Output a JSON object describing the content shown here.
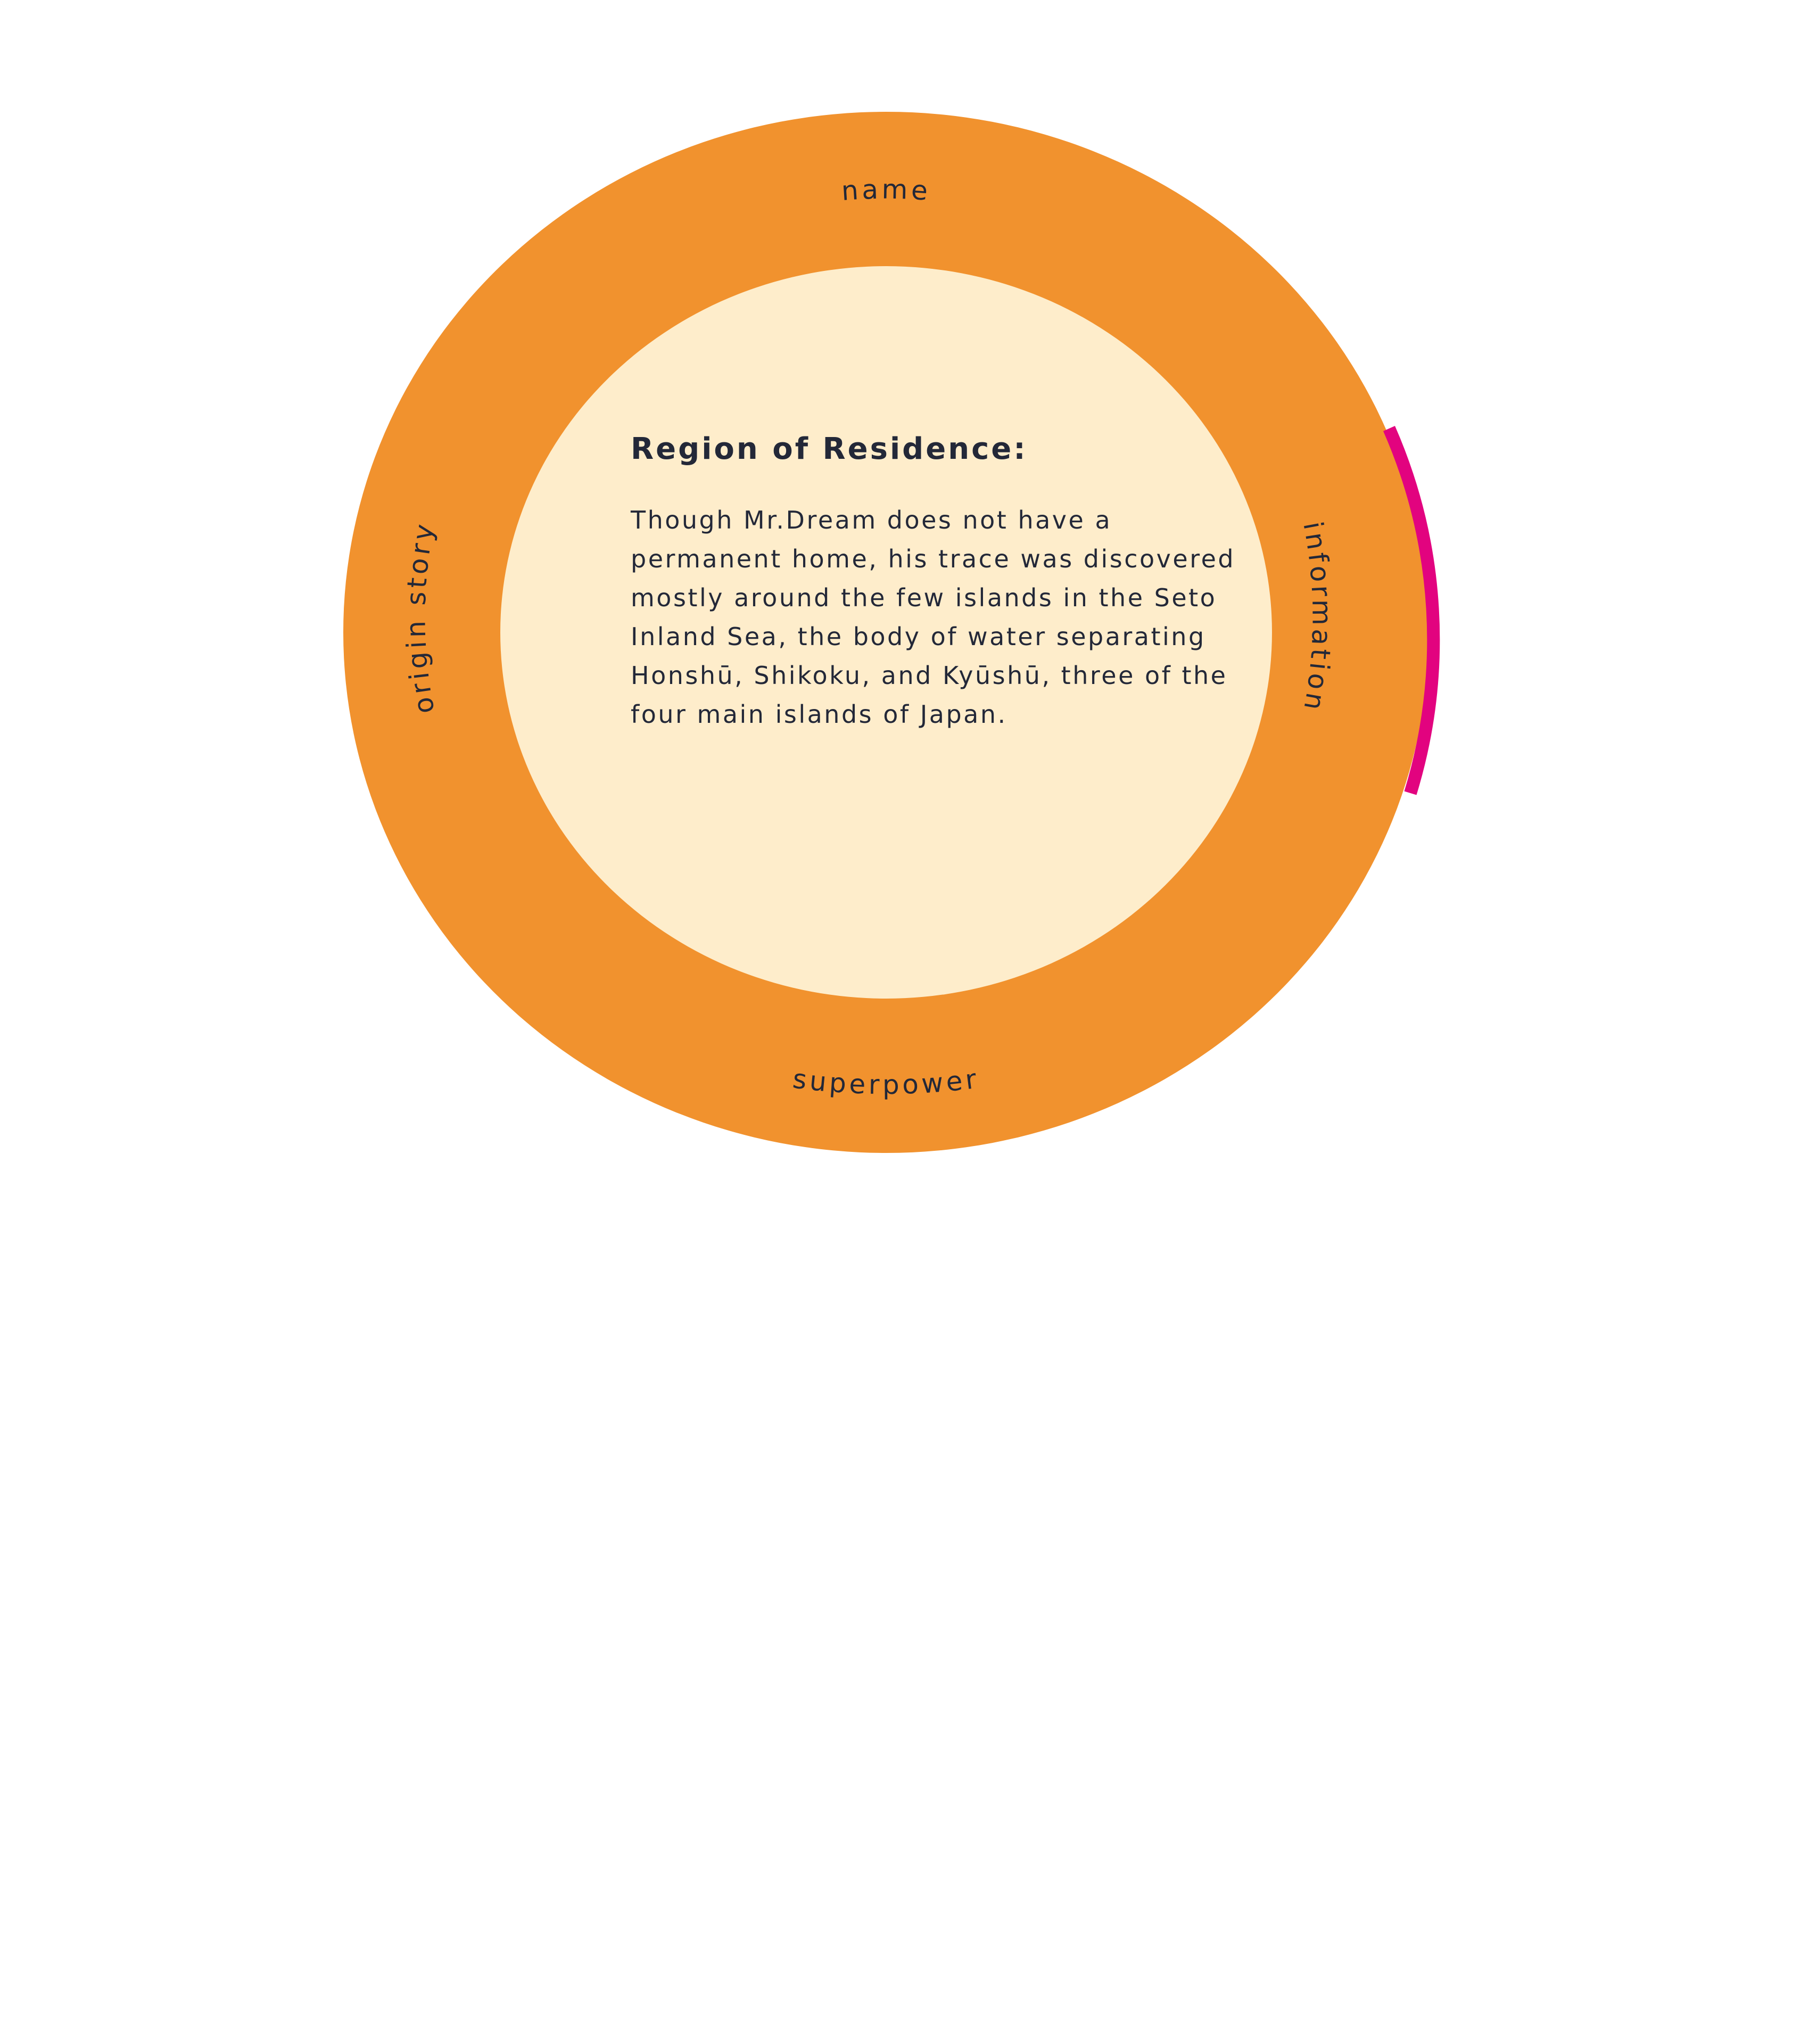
{
  "wheel": {
    "colors": {
      "outer_ring": "#F1922E",
      "inner_disc": "#FEEDCB",
      "selected_arc": "#E2037F",
      "text": "#232838",
      "background": "#FFFFFF"
    },
    "segments": {
      "top": "name",
      "left": "origin story",
      "right": "information",
      "bottom": "superpower"
    },
    "selected_segment": "information"
  },
  "panel": {
    "heading": "Region of Residence:",
    "body": "Though Mr.Dream does not have a permanent home, his trace was discovered mostly around the few islands in the Seto Inland Sea, the body of water separating Honshū, Shikoku, and Kyūshū, three of the four main islands of Japan."
  }
}
